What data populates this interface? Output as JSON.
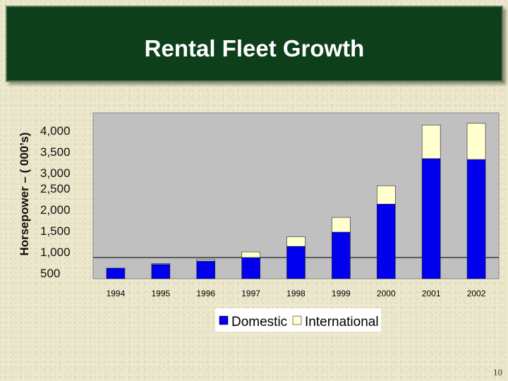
{
  "slide": {
    "title": "Rental Fleet Growth",
    "page_number": "10"
  },
  "chart_data": {
    "type": "bar",
    "stacked": true,
    "title": "Rental Fleet Growth",
    "ylabel": "Horsepower – ( 000’s)",
    "y_tick_labels": [
      "4,000",
      "3,500",
      "3,000",
      "2,500",
      "2,000",
      "1,500",
      "1,000",
      "500"
    ],
    "categories": [
      "1994",
      "1995",
      "1996",
      "1997",
      "1998",
      "1999",
      "2000",
      "2001",
      "2002"
    ],
    "series": [
      {
        "name": "Domestic",
        "color": "#0000ee",
        "values": [
          500,
          680,
          840,
          1000,
          1220,
          1500,
          2060,
          3100,
          3080
        ]
      },
      {
        "name": "International",
        "color": "#ffffd0",
        "values": [
          0,
          30,
          70,
          110,
          190,
          290,
          420,
          780,
          840
        ]
      }
    ],
    "legend_position": "bottom",
    "plot_background": "#c0c0c0"
  }
}
